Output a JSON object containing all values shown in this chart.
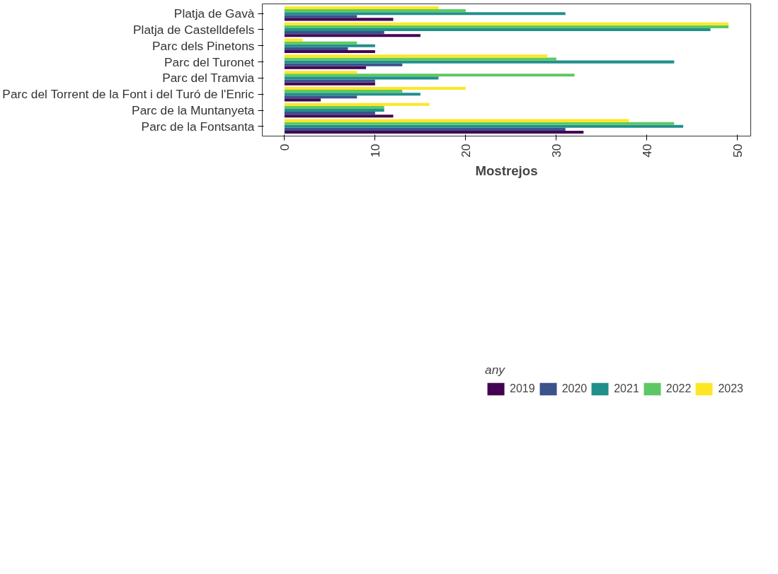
{
  "chart_data": {
    "type": "bar",
    "orientation": "horizontal",
    "xlabel": "Mostrejos",
    "legend_title": "any",
    "legend": "bottom",
    "grid": false,
    "categories": [
      "Platja de Gavà",
      "Platja de Castelldefels",
      "Parc dels Pinetons",
      "Parc del Turonet",
      "Parc del Tramvia",
      "Parc del Torrent de la Font i del Turó de l'Enric",
      "Parc de la Muntanyeta",
      "Parc de la Fontsanta"
    ],
    "xlim": [
      -2.45,
      51.45
    ],
    "xticks": [
      0,
      10,
      20,
      30,
      40,
      50
    ],
    "series": [
      {
        "name": "2019",
        "color": "#440154",
        "values": [
          12,
          15,
          10,
          9,
          10,
          4,
          12,
          33
        ]
      },
      {
        "name": "2020",
        "color": "#3b528b",
        "values": [
          8,
          11,
          7,
          13,
          10,
          8,
          10,
          31
        ]
      },
      {
        "name": "2021",
        "color": "#21908c",
        "values": [
          31,
          47,
          10,
          43,
          17,
          15,
          11,
          44
        ]
      },
      {
        "name": "2022",
        "color": "#5dc863",
        "values": [
          20,
          49,
          8,
          30,
          32,
          13,
          11,
          43
        ]
      },
      {
        "name": "2023",
        "color": "#fde725",
        "values": [
          17,
          49,
          2,
          29,
          8,
          20,
          16,
          38
        ]
      }
    ]
  }
}
